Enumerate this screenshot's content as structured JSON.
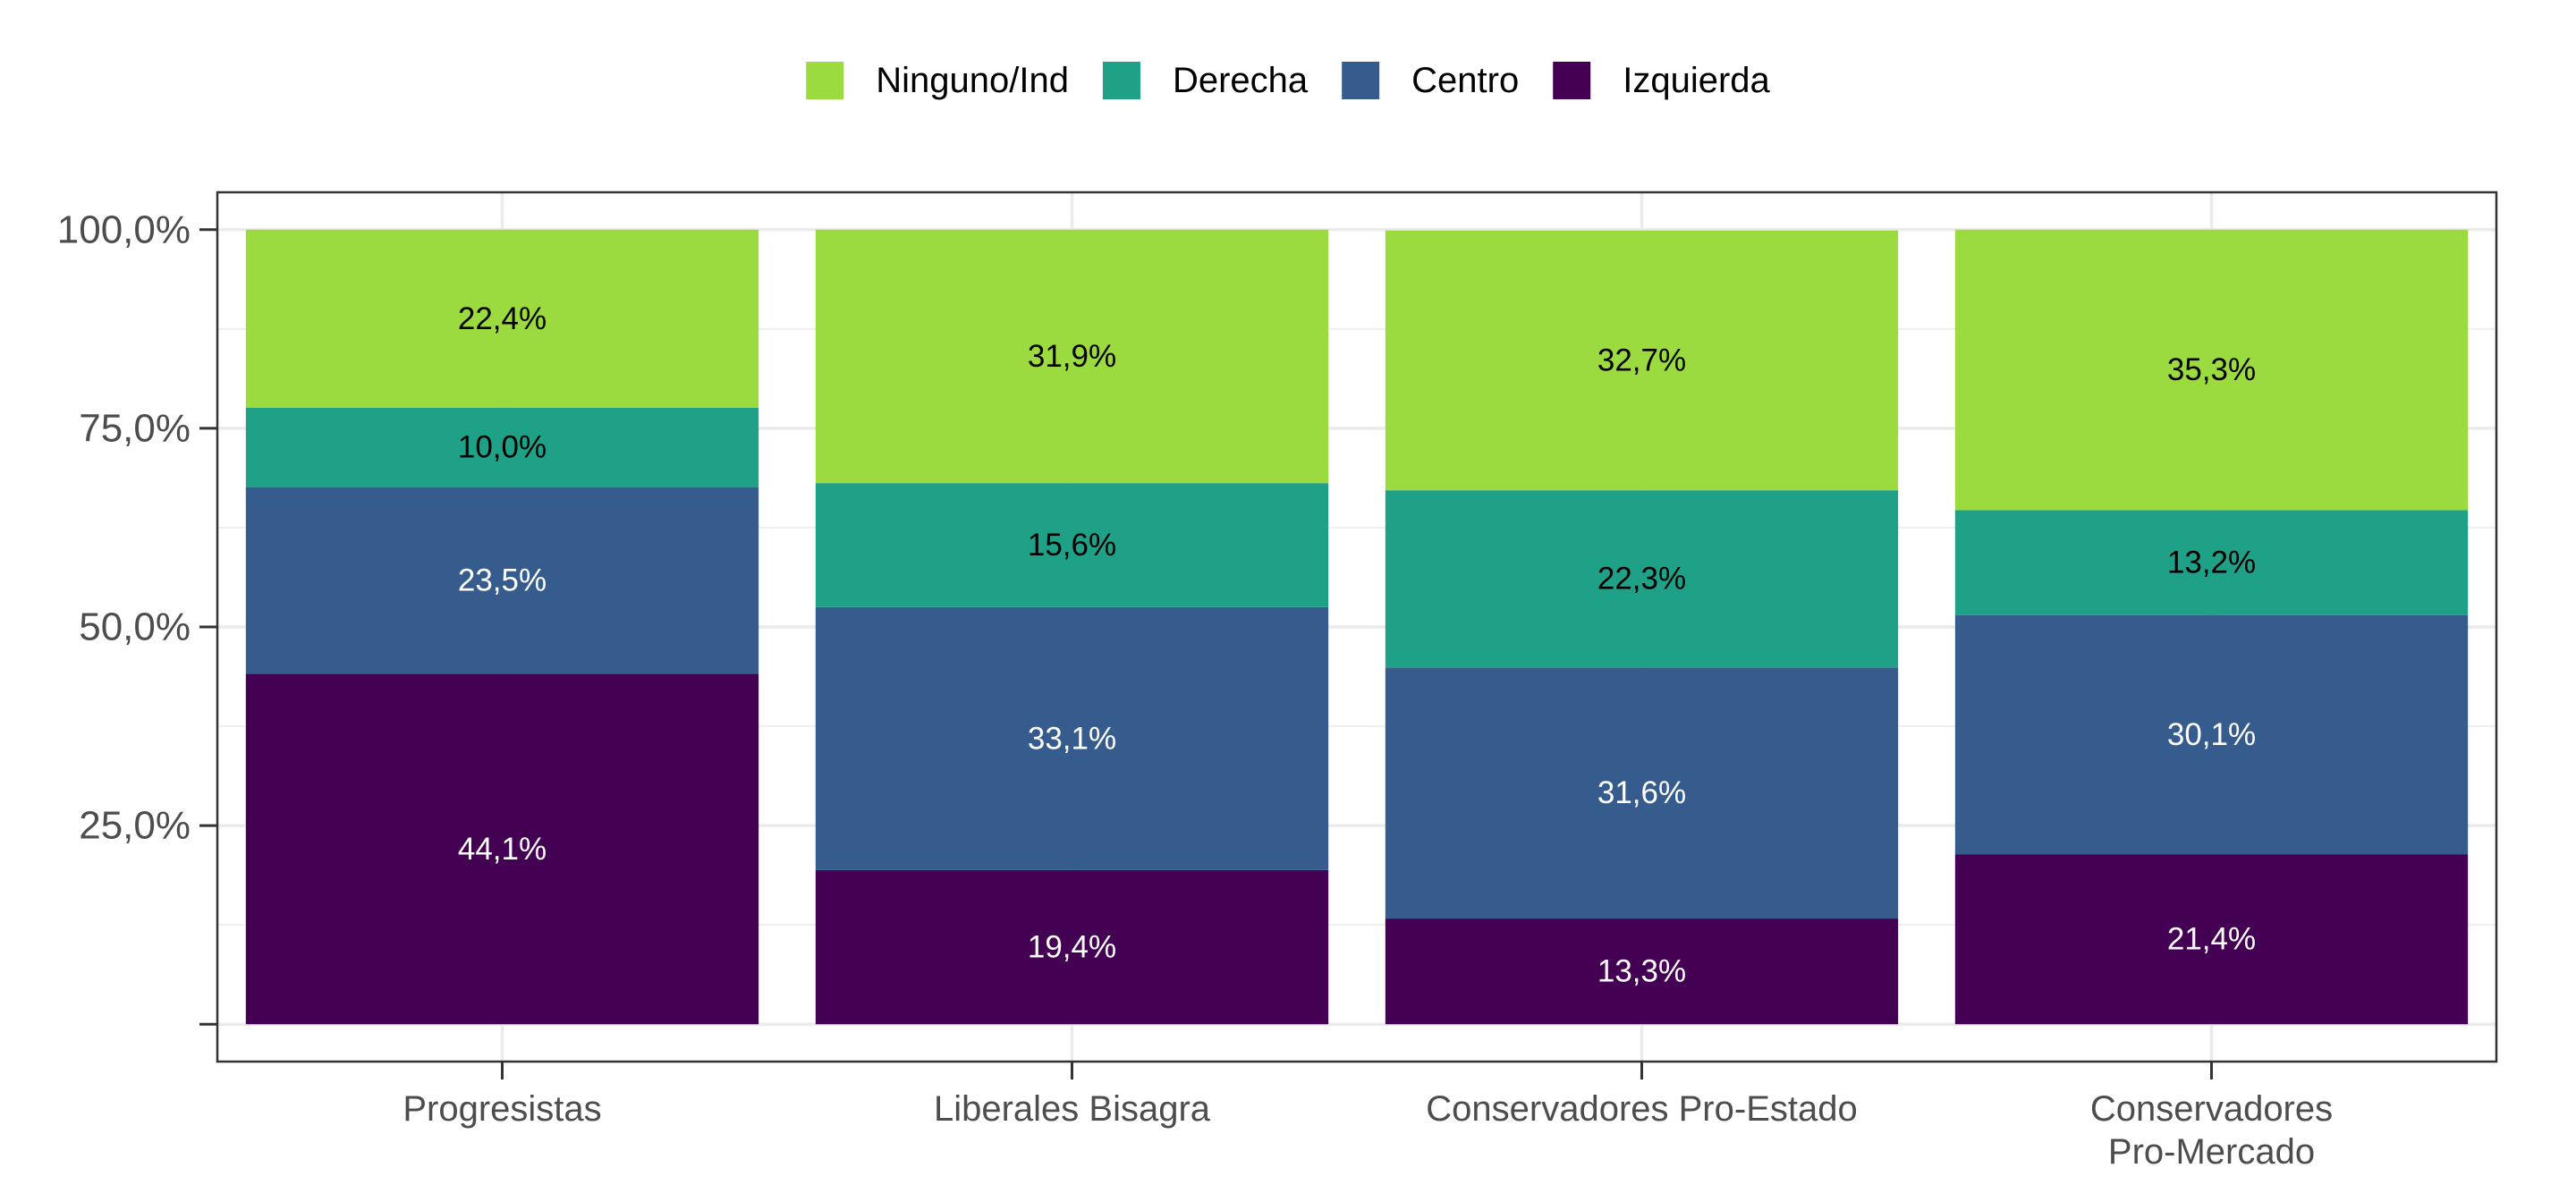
{
  "chart_data": {
    "type": "bar",
    "stacked": true,
    "categories": [
      "Progresistas",
      "Liberales Bisagra",
      "Conservadores Pro-Estado",
      "Conservadores\nPro-Mercado"
    ],
    "series": [
      {
        "name": "Izquierda",
        "color": "#440154",
        "label_color": "#ffffff",
        "values": [
          44.1,
          19.4,
          13.3,
          21.4
        ],
        "labels": [
          "44,1%",
          "19,4%",
          "13,3%",
          "21,4%"
        ]
      },
      {
        "name": "Centro",
        "color": "#365C8D",
        "label_color": "#ffffff",
        "values": [
          23.5,
          33.1,
          31.6,
          30.1
        ],
        "labels": [
          "23,5%",
          "33,1%",
          "31,6%",
          "30,1%"
        ]
      },
      {
        "name": "Derecha",
        "color": "#1FA187",
        "label_color": "#000000",
        "values": [
          10.0,
          15.6,
          22.3,
          13.2
        ],
        "labels": [
          "10,0%",
          "15,6%",
          "22,3%",
          "13,2%"
        ]
      },
      {
        "name": "Ninguno/Ind",
        "color": "#9BDB3F",
        "label_color": "#000000",
        "values": [
          22.4,
          31.9,
          32.7,
          35.3
        ],
        "labels": [
          "22,4%",
          "31,9%",
          "32,7%",
          "35,3%"
        ]
      }
    ],
    "legend_order": [
      "Ninguno/Ind",
      "Derecha",
      "Centro",
      "Izquierda"
    ],
    "legend_position": "top",
    "y_ticks": [
      {
        "value": 0,
        "label": ""
      },
      {
        "value": 25,
        "label": "25,0%"
      },
      {
        "value": 50,
        "label": "50,0%"
      },
      {
        "value": 75,
        "label": "75,0%"
      },
      {
        "value": 100,
        "label": "100,0%"
      }
    ],
    "ylim": [
      -4.7,
      104.7
    ],
    "grid": true,
    "title": "",
    "xlabel": "",
    "ylabel": ""
  }
}
